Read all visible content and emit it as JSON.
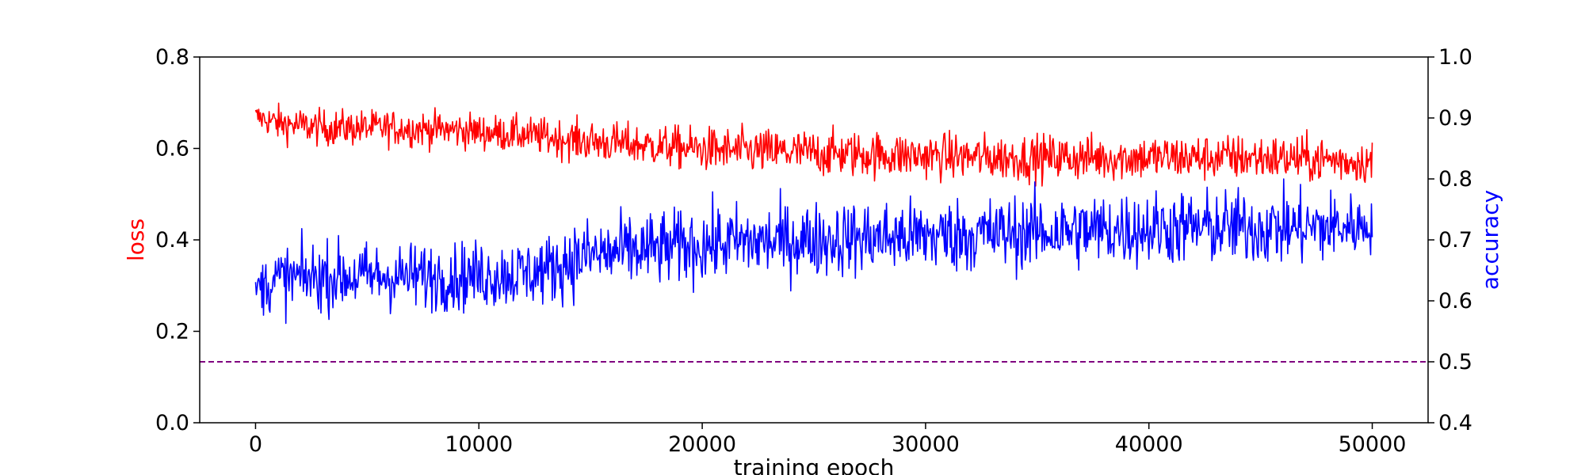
{
  "chart_data": {
    "type": "line",
    "title": "",
    "xlabel": "training epoch",
    "ylabel_left": "loss",
    "ylabel_right": "accuracy",
    "xlim": [
      -2500,
      52500
    ],
    "ylim_left": [
      0.0,
      0.8
    ],
    "ylim_right": [
      0.4,
      1.0
    ],
    "x_ticks": [
      0,
      10000,
      20000,
      30000,
      40000,
      50000
    ],
    "x_tick_labels": [
      "0",
      "10000",
      "20000",
      "30000",
      "40000",
      "50000"
    ],
    "y_left_ticks": [
      0.0,
      0.2,
      0.4,
      0.6,
      0.8
    ],
    "y_left_tick_labels": [
      "0.0",
      "0.2",
      "0.4",
      "0.6",
      "0.8"
    ],
    "y_right_ticks": [
      0.4,
      0.5,
      0.6,
      0.7,
      0.8,
      0.9,
      1.0
    ],
    "y_right_tick_labels": [
      "0.4",
      "0.5",
      "0.6",
      "0.7",
      "0.8",
      "0.9",
      "1.0"
    ],
    "grid": false,
    "legend": "none",
    "reference_line": {
      "axis": "right",
      "y": 0.5,
      "style": "dashed",
      "color": "#800080"
    },
    "series": [
      {
        "axis": "left",
        "color": "#ff0000",
        "x": [
          0,
          1000,
          3000,
          6000,
          9000,
          12000,
          15000,
          18000,
          21000,
          25000,
          29000,
          33000,
          37000,
          41000,
          45000,
          48000,
          50000
        ],
        "mean": [
          0.67,
          0.655,
          0.645,
          0.645,
          0.64,
          0.63,
          0.615,
          0.605,
          0.595,
          0.59,
          0.585,
          0.58,
          0.58,
          0.58,
          0.58,
          0.575,
          0.57
        ],
        "spread": [
          0.025,
          0.035,
          0.035,
          0.035,
          0.035,
          0.035,
          0.04,
          0.04,
          0.045,
          0.045,
          0.045,
          0.045,
          0.045,
          0.045,
          0.045,
          0.045,
          0.04
        ]
      },
      {
        "axis": "right",
        "color": "#0000ff",
        "x": [
          0,
          1000,
          3000,
          6000,
          9000,
          12000,
          13000,
          14000,
          15000,
          18000,
          21000,
          25000,
          29000,
          33000,
          37000,
          41000,
          45000,
          48000,
          50000
        ],
        "mean": [
          0.62,
          0.635,
          0.64,
          0.64,
          0.64,
          0.645,
          0.65,
          0.665,
          0.675,
          0.685,
          0.695,
          0.7,
          0.705,
          0.71,
          0.715,
          0.72,
          0.72,
          0.72,
          0.725
        ],
        "spread": [
          0.035,
          0.05,
          0.05,
          0.05,
          0.05,
          0.05,
          0.05,
          0.055,
          0.055,
          0.055,
          0.055,
          0.055,
          0.055,
          0.055,
          0.055,
          0.055,
          0.055,
          0.055,
          0.04
        ]
      }
    ]
  }
}
